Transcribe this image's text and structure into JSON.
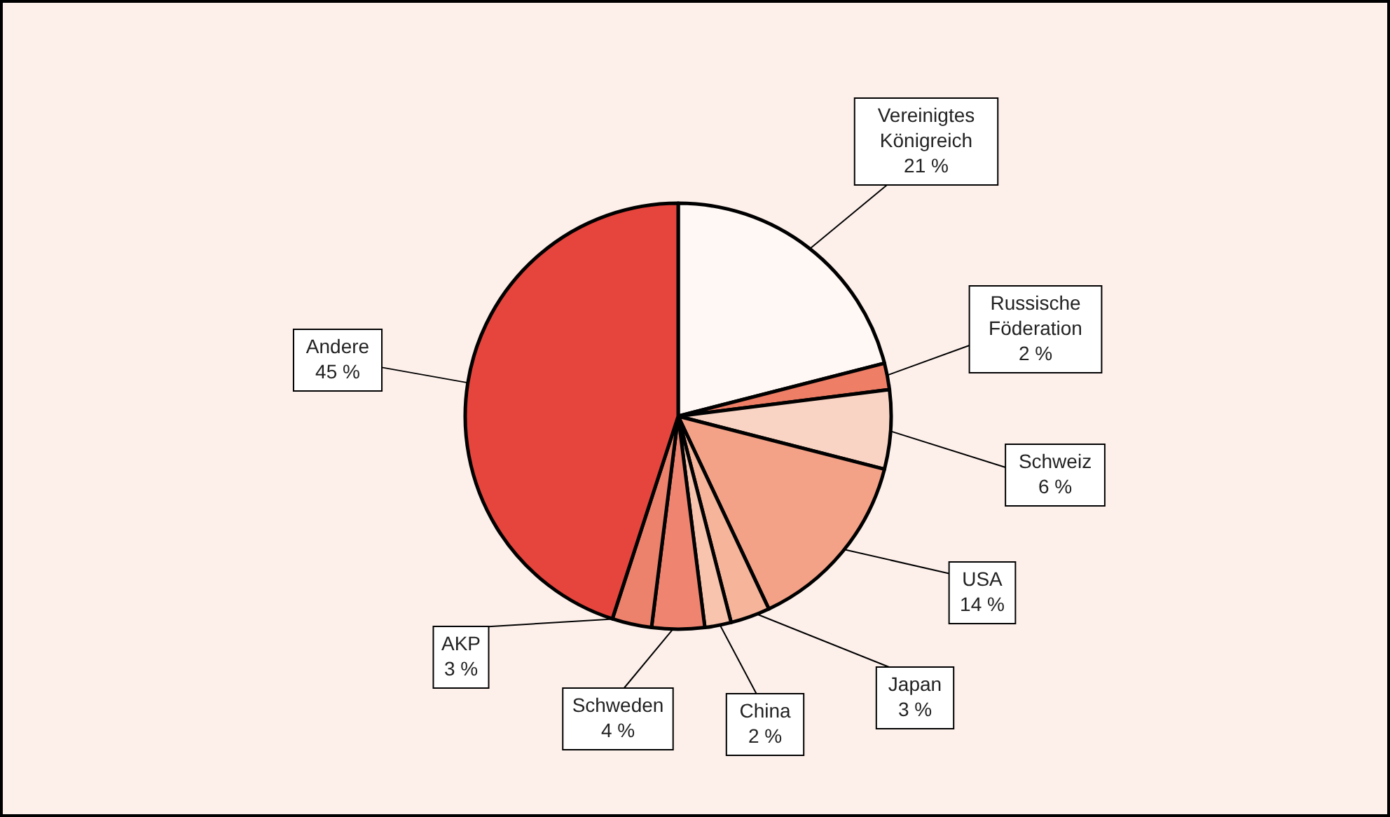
{
  "chart_data": {
    "type": "pie",
    "categories": [
      "Vereinigtes Königreich",
      "Russische Föderation",
      "Schweiz",
      "USA",
      "Japan",
      "China",
      "Schweden",
      "AKP",
      "Andere"
    ],
    "values": [
      21,
      2,
      6,
      14,
      3,
      2,
      4,
      3,
      45
    ],
    "colors": [
      "#fff8f4",
      "#ef7e66",
      "#f9d4c4",
      "#f4a287",
      "#f6b49a",
      "#f8c4ae",
      "#ef8470",
      "#ec826c",
      "#e5453d"
    ],
    "value_labels": [
      "21 %",
      "2 %",
      "6 %",
      "14 %",
      "3 %",
      "2 %",
      "4 %",
      "3 %",
      "45 %"
    ]
  }
}
